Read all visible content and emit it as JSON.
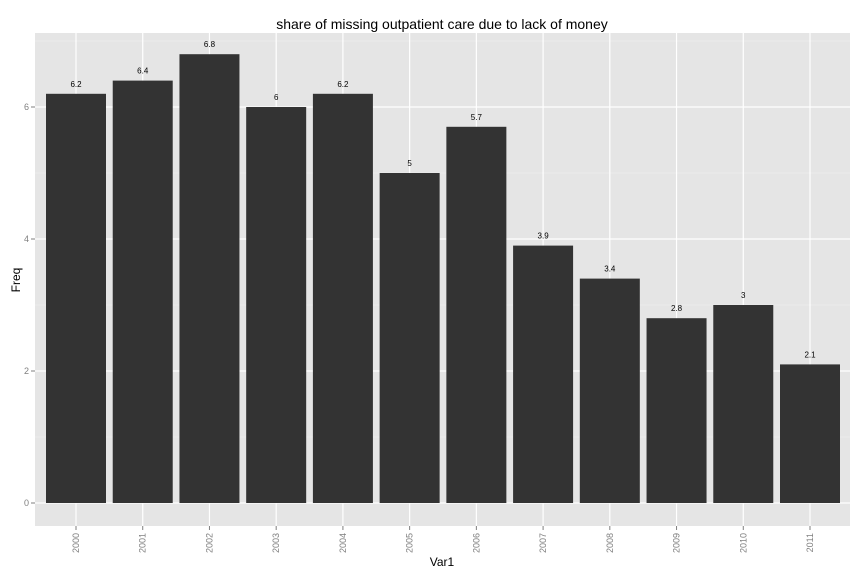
{
  "chart_data": {
    "type": "bar",
    "title": "share of missing outpatient care due to lack of money",
    "xlabel": "Var1",
    "ylabel": "Freq",
    "categories": [
      "2000",
      "2001",
      "2002",
      "2003",
      "2004",
      "2005",
      "2006",
      "2007",
      "2008",
      "2009",
      "2010",
      "2011"
    ],
    "values": [
      6.2,
      6.4,
      6.8,
      6,
      6.2,
      5,
      5.7,
      3.9,
      3.4,
      2.8,
      3,
      2.1
    ],
    "value_labels": [
      "6.2",
      "6.4",
      "6.8",
      "6",
      "6.2",
      "5",
      "5.7",
      "3.9",
      "3.4",
      "2.8",
      "3",
      "2.1"
    ],
    "yticks": [
      0,
      2,
      4,
      6
    ],
    "ytick_labels": [
      "0",
      "2",
      "4",
      "6"
    ],
    "ylim": [
      0,
      7.14
    ],
    "grid": true,
    "legend": "none",
    "colors": {
      "bar": "#333333",
      "panel_background": "#e5e5e5",
      "grid_major": "#ffffff",
      "grid_minor": "#f2f2f2",
      "tick_label": "#7f7f7f"
    }
  }
}
